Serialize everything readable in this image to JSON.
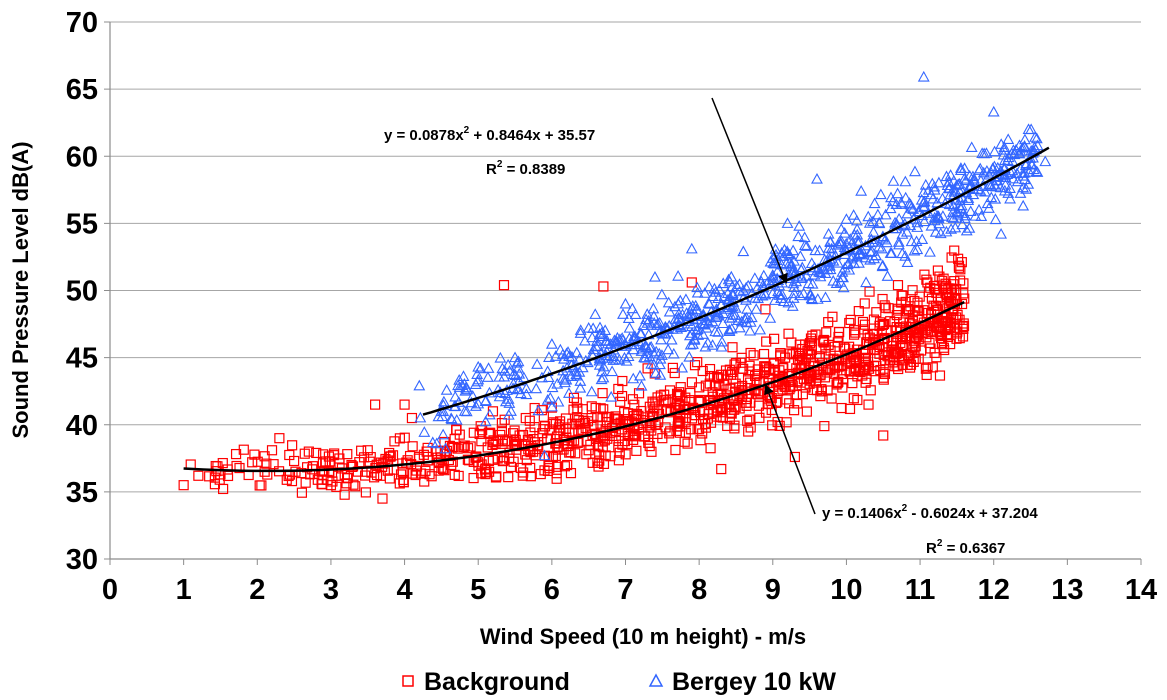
{
  "chart_data": {
    "type": "scatter",
    "xlabel": "Wind Speed (10 m height) - m/s",
    "ylabel": "Sound Pressure Level dB(A)",
    "xlim": [
      0,
      14
    ],
    "ylim": [
      30,
      70
    ],
    "xticks": [
      "0",
      "1",
      "2",
      "3",
      "4",
      "5",
      "6",
      "7",
      "8",
      "9",
      "10",
      "11",
      "12",
      "13",
      "14"
    ],
    "yticks": [
      "30",
      "35",
      "40",
      "45",
      "50",
      "55",
      "60",
      "65",
      "70"
    ],
    "grid": "horizontal",
    "legend_position": "bottom",
    "series": [
      {
        "name": "Background",
        "marker": "square",
        "color": "#ff0000",
        "fit": {
          "a": 0.1406,
          "b": -0.6024,
          "c": 37.204,
          "x_range": [
            1.0,
            11.6
          ]
        },
        "samples": [
          [
            1.0,
            35.5
          ],
          [
            1.2,
            36.2
          ],
          [
            1.5,
            36.3
          ],
          [
            2.1,
            36.5
          ],
          [
            2.2,
            38.1
          ],
          [
            2.3,
            39.0
          ],
          [
            2.4,
            35.9
          ],
          [
            2.5,
            37.3
          ],
          [
            2.6,
            36.4
          ],
          [
            2.7,
            38.0
          ],
          [
            2.8,
            37.9
          ],
          [
            3.0,
            35.5
          ],
          [
            3.1,
            36.2
          ],
          [
            3.3,
            36.9
          ],
          [
            3.5,
            38.1
          ],
          [
            3.6,
            41.5
          ],
          [
            3.7,
            34.5
          ],
          [
            3.8,
            36.0
          ],
          [
            4.0,
            41.5
          ],
          [
            4.1,
            40.5
          ],
          [
            4.3,
            38.0
          ],
          [
            4.5,
            36.8
          ],
          [
            4.7,
            39.6
          ],
          [
            5.0,
            37.2
          ],
          [
            5.2,
            41.0
          ],
          [
            5.35,
            50.4
          ],
          [
            5.5,
            38.5
          ],
          [
            5.7,
            40.3
          ],
          [
            5.9,
            36.6
          ],
          [
            6.1,
            39.8
          ],
          [
            6.3,
            42.0
          ],
          [
            6.5,
            38.1
          ],
          [
            6.7,
            50.3
          ],
          [
            6.9,
            40.4
          ],
          [
            7.1,
            41.9
          ],
          [
            7.3,
            44.2
          ],
          [
            7.5,
            39.0
          ],
          [
            7.7,
            42.3
          ],
          [
            7.9,
            50.6
          ],
          [
            8.0,
            41.7
          ],
          [
            8.2,
            43.6
          ],
          [
            8.3,
            36.7
          ],
          [
            8.5,
            44.6
          ],
          [
            8.7,
            39.8
          ],
          [
            8.9,
            48.6
          ],
          [
            9.1,
            45.1
          ],
          [
            9.3,
            37.6
          ],
          [
            9.5,
            43.3
          ],
          [
            9.7,
            39.9
          ],
          [
            9.9,
            46.9
          ],
          [
            10.1,
            44.0
          ],
          [
            10.3,
            41.5
          ],
          [
            10.5,
            39.2
          ],
          [
            10.7,
            50.4
          ],
          [
            10.9,
            45.8
          ],
          [
            11.1,
            50.6
          ],
          [
            11.3,
            46.0
          ],
          [
            11.5,
            46.8
          ],
          [
            11.6,
            49.4
          ]
        ]
      },
      {
        "name": "Bergey 10 kW",
        "marker": "triangle",
        "color": "#3366ff",
        "fit": {
          "a": 0.0878,
          "b": 0.8464,
          "c": 35.57,
          "x_range": [
            4.25,
            12.75
          ]
        },
        "samples": [
          [
            4.2,
            42.9
          ],
          [
            4.5,
            41.0
          ],
          [
            4.8,
            43.6
          ],
          [
            5.0,
            44.3
          ],
          [
            5.3,
            42.4
          ],
          [
            5.5,
            45.0
          ],
          [
            5.8,
            44.5
          ],
          [
            5.9,
            37.7
          ],
          [
            6.0,
            46.0
          ],
          [
            6.2,
            45.3
          ],
          [
            6.5,
            47.2
          ],
          [
            6.7,
            43.5
          ],
          [
            7.0,
            49.0
          ],
          [
            7.2,
            46.8
          ],
          [
            7.4,
            51.0
          ],
          [
            7.6,
            48.4
          ],
          [
            7.9,
            53.1
          ],
          [
            8.1,
            47.2
          ],
          [
            8.4,
            50.8
          ],
          [
            8.6,
            52.9
          ],
          [
            8.8,
            49.4
          ],
          [
            9.0,
            52.4
          ],
          [
            9.2,
            55.0
          ],
          [
            9.4,
            51.7
          ],
          [
            9.6,
            58.3
          ],
          [
            9.8,
            53.1
          ],
          [
            10.0,
            55.3
          ],
          [
            10.2,
            57.4
          ],
          [
            10.4,
            52.6
          ],
          [
            10.6,
            56.1
          ],
          [
            10.8,
            58.1
          ],
          [
            11.05,
            65.9
          ],
          [
            11.2,
            55.2
          ],
          [
            11.4,
            56.4
          ],
          [
            11.6,
            58.3
          ],
          [
            11.8,
            56.0
          ],
          [
            12.0,
            63.3
          ],
          [
            12.1,
            54.2
          ],
          [
            12.35,
            60.8
          ],
          [
            12.4,
            56.3
          ],
          [
            12.7,
            59.6
          ]
        ]
      }
    ],
    "annotations": [
      {
        "text_main": "y = 0.0878x",
        "sup": "2",
        "text_rest": " + 0.8464x + 35.57",
        "r2_main": "R",
        "r2_sup": "2",
        "r2_rest": " = 0.8389"
      },
      {
        "text_main": "y = 0.1406x",
        "sup": "2",
        "text_rest": " - 0.6024x + 37.204",
        "r2_main": "R",
        "r2_sup": "2",
        "r2_rest": " = 0.6367"
      }
    ]
  }
}
